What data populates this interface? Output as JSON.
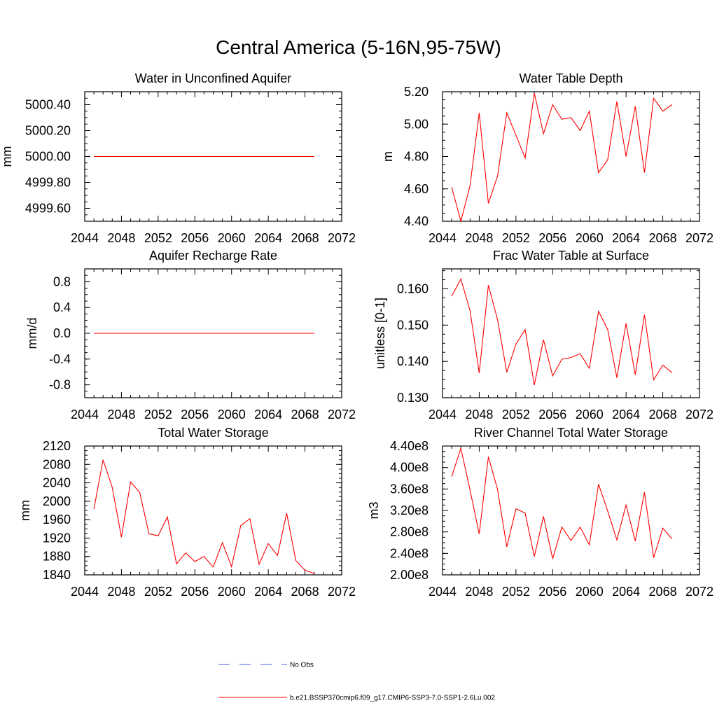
{
  "figure": {
    "title": "Central America (5-16N,95-75W)",
    "legend": [
      {
        "label": "No Obs",
        "color": "#4b5bd6",
        "style": "dashed"
      },
      {
        "label": "b.e21.BSSP370cmip6.f09_g17.CMIP6-SSP3-7.0-SSP1-2.6Lu.002",
        "color": "#ff0000",
        "style": "solid"
      }
    ]
  },
  "chart_data": [
    {
      "type": "line",
      "title": "Water in Unconfined Aquifer",
      "ylabel": "mm",
      "xlim": [
        2044,
        2072
      ],
      "ylim": [
        4999.5,
        5000.5
      ],
      "xticks": [
        "2044",
        "2048",
        "2052",
        "2056",
        "2060",
        "2064",
        "2068",
        "2072"
      ],
      "yticks": [
        {
          "v": 4999.6,
          "label": "4999.60"
        },
        {
          "v": 4999.8,
          "label": "4999.80"
        },
        {
          "v": 5000.0,
          "label": "5000.00"
        },
        {
          "v": 5000.2,
          "label": "5000.20"
        },
        {
          "v": 5000.4,
          "label": "5000.40"
        }
      ],
      "series": [
        {
          "color": "#ff0000",
          "x": [
            2045,
            2046,
            2047,
            2048,
            2049,
            2050,
            2051,
            2052,
            2053,
            2054,
            2055,
            2056,
            2057,
            2058,
            2059,
            2060,
            2061,
            2062,
            2063,
            2064,
            2065,
            2066,
            2067,
            2068,
            2069
          ],
          "values": [
            5000,
            5000,
            5000,
            5000,
            5000,
            5000,
            5000,
            5000,
            5000,
            5000,
            5000,
            5000,
            5000,
            5000,
            5000,
            5000,
            5000,
            5000,
            5000,
            5000,
            5000,
            5000,
            5000,
            5000,
            5000
          ]
        }
      ]
    },
    {
      "type": "line",
      "title": "Water Table Depth",
      "ylabel": "m",
      "xlim": [
        2044,
        2072
      ],
      "ylim": [
        4.4,
        5.2
      ],
      "xticks": [
        "2044",
        "2048",
        "2052",
        "2056",
        "2060",
        "2064",
        "2068",
        "2072"
      ],
      "yticks": [
        {
          "v": 4.4,
          "label": "4.40"
        },
        {
          "v": 4.6,
          "label": "4.60"
        },
        {
          "v": 4.8,
          "label": "4.80"
        },
        {
          "v": 5.0,
          "label": "5.00"
        },
        {
          "v": 5.2,
          "label": "5.20"
        }
      ],
      "series": [
        {
          "color": "#ff0000",
          "x": [
            2045,
            2046,
            2047,
            2048,
            2049,
            2050,
            2051,
            2052,
            2053,
            2054,
            2055,
            2056,
            2057,
            2058,
            2059,
            2060,
            2061,
            2062,
            2063,
            2064,
            2065,
            2066,
            2067,
            2068,
            2069
          ],
          "values": [
            4.61,
            4.4,
            4.62,
            5.07,
            4.51,
            4.68,
            5.07,
            4.93,
            4.79,
            5.19,
            4.94,
            5.12,
            5.03,
            5.04,
            4.96,
            5.08,
            4.7,
            4.78,
            5.14,
            4.8,
            5.11,
            4.7,
            5.16,
            5.08,
            5.12
          ]
        }
      ]
    },
    {
      "type": "line",
      "title": "Aquifer Recharge Rate",
      "ylabel": "mm/d",
      "xlim": [
        2044,
        2072
      ],
      "ylim": [
        -1.0,
        1.0
      ],
      "xticks": [
        "2044",
        "2048",
        "2052",
        "2056",
        "2060",
        "2064",
        "2068",
        "2072"
      ],
      "yticks": [
        {
          "v": -0.8,
          "label": "-0.8"
        },
        {
          "v": -0.4,
          "label": "-0.4"
        },
        {
          "v": 0.0,
          "label": "0.0"
        },
        {
          "v": 0.4,
          "label": "0.4"
        },
        {
          "v": 0.8,
          "label": "0.8"
        }
      ],
      "series": [
        {
          "color": "#ff0000",
          "x": [
            2045,
            2046,
            2047,
            2048,
            2049,
            2050,
            2051,
            2052,
            2053,
            2054,
            2055,
            2056,
            2057,
            2058,
            2059,
            2060,
            2061,
            2062,
            2063,
            2064,
            2065,
            2066,
            2067,
            2068,
            2069
          ],
          "values": [
            0,
            0,
            0,
            0,
            0,
            0,
            0,
            0,
            0,
            0,
            0,
            0,
            0,
            0,
            0,
            0,
            0,
            0,
            0,
            0,
            0,
            0,
            0,
            0,
            0
          ]
        }
      ]
    },
    {
      "type": "line",
      "title": "Frac Water Table at Surface",
      "ylabel": "unitless [0-1]",
      "xlim": [
        2044,
        2072
      ],
      "ylim": [
        0.13,
        0.1655
      ],
      "xticks": [
        "2044",
        "2048",
        "2052",
        "2056",
        "2060",
        "2064",
        "2068",
        "2072"
      ],
      "yticks": [
        {
          "v": 0.13,
          "label": "0.130"
        },
        {
          "v": 0.14,
          "label": "0.140"
        },
        {
          "v": 0.15,
          "label": "0.150"
        },
        {
          "v": 0.16,
          "label": "0.160"
        }
      ],
      "series": [
        {
          "color": "#ff0000",
          "x": [
            2045,
            2046,
            2047,
            2048,
            2049,
            2050,
            2051,
            2052,
            2053,
            2054,
            2055,
            2056,
            2057,
            2058,
            2059,
            2060,
            2061,
            2062,
            2063,
            2064,
            2065,
            2066,
            2067,
            2068,
            2069
          ],
          "values": [
            0.158,
            0.1627,
            0.154,
            0.1368,
            0.161,
            0.1515,
            0.137,
            0.1448,
            0.1488,
            0.1335,
            0.146,
            0.136,
            0.1406,
            0.1411,
            0.1421,
            0.1381,
            0.1538,
            0.1488,
            0.1355,
            0.1505,
            0.1363,
            0.1529,
            0.1349,
            0.139,
            0.1369
          ]
        }
      ]
    },
    {
      "type": "line",
      "title": "Total Water Storage",
      "ylabel": "mm",
      "xlim": [
        2044,
        2072
      ],
      "ylim": [
        1840,
        2120
      ],
      "xticks": [
        "2044",
        "2048",
        "2052",
        "2056",
        "2060",
        "2064",
        "2068",
        "2072"
      ],
      "yticks": [
        {
          "v": 1840,
          "label": "1840"
        },
        {
          "v": 1880,
          "label": "1880"
        },
        {
          "v": 1920,
          "label": "1920"
        },
        {
          "v": 1960,
          "label": "1960"
        },
        {
          "v": 2000,
          "label": "2000"
        },
        {
          "v": 2040,
          "label": "2040"
        },
        {
          "v": 2080,
          "label": "2080"
        },
        {
          "v": 2120,
          "label": "2120"
        }
      ],
      "series": [
        {
          "color": "#ff0000",
          "x": [
            2045,
            2046,
            2047,
            2048,
            2049,
            2050,
            2051,
            2052,
            2053,
            2054,
            2055,
            2056,
            2057,
            2058,
            2059,
            2060,
            2061,
            2062,
            2063,
            2064,
            2065,
            2066,
            2067,
            2068,
            2069
          ],
          "values": [
            1983,
            2090,
            2030,
            1922,
            2042,
            2019,
            1929,
            1925,
            1966,
            1864,
            1888,
            1869,
            1880,
            1857,
            1910,
            1858,
            1947,
            1962,
            1863,
            1908,
            1882,
            1974,
            1871,
            1850,
            1843
          ]
        }
      ]
    },
    {
      "type": "line",
      "title": "River Channel Total Water Storage",
      "ylabel": "m3",
      "xlim": [
        2044,
        2072
      ],
      "ylim": [
        200000000.0,
        440000000.0
      ],
      "xticks": [
        "2044",
        "2048",
        "2052",
        "2056",
        "2060",
        "2064",
        "2068",
        "2072"
      ],
      "yticks": [
        {
          "v": 200000000.0,
          "label": "2.00e8"
        },
        {
          "v": 240000000.0,
          "label": "2.40e8"
        },
        {
          "v": 280000000.0,
          "label": "2.80e8"
        },
        {
          "v": 320000000.0,
          "label": "3.20e8"
        },
        {
          "v": 360000000.0,
          "label": "3.60e8"
        },
        {
          "v": 400000000.0,
          "label": "4.00e8"
        },
        {
          "v": 440000000.0,
          "label": "4.40e8"
        }
      ],
      "series": [
        {
          "color": "#ff0000",
          "x": [
            2045,
            2046,
            2047,
            2048,
            2049,
            2050,
            2051,
            2052,
            2053,
            2054,
            2055,
            2056,
            2057,
            2058,
            2059,
            2060,
            2061,
            2062,
            2063,
            2064,
            2065,
            2066,
            2067,
            2068,
            2069
          ],
          "values": [
            383000000.0,
            436000000.0,
            358000000.0,
            276000000.0,
            420000000.0,
            359000000.0,
            252000000.0,
            323000000.0,
            315000000.0,
            234000000.0,
            309000000.0,
            230000000.0,
            289000000.0,
            264000000.0,
            289000000.0,
            256000000.0,
            369000000.0,
            319000000.0,
            265000000.0,
            330000000.0,
            263000000.0,
            354000000.0,
            232000000.0,
            287000000.0,
            267000000.0
          ]
        }
      ]
    }
  ]
}
